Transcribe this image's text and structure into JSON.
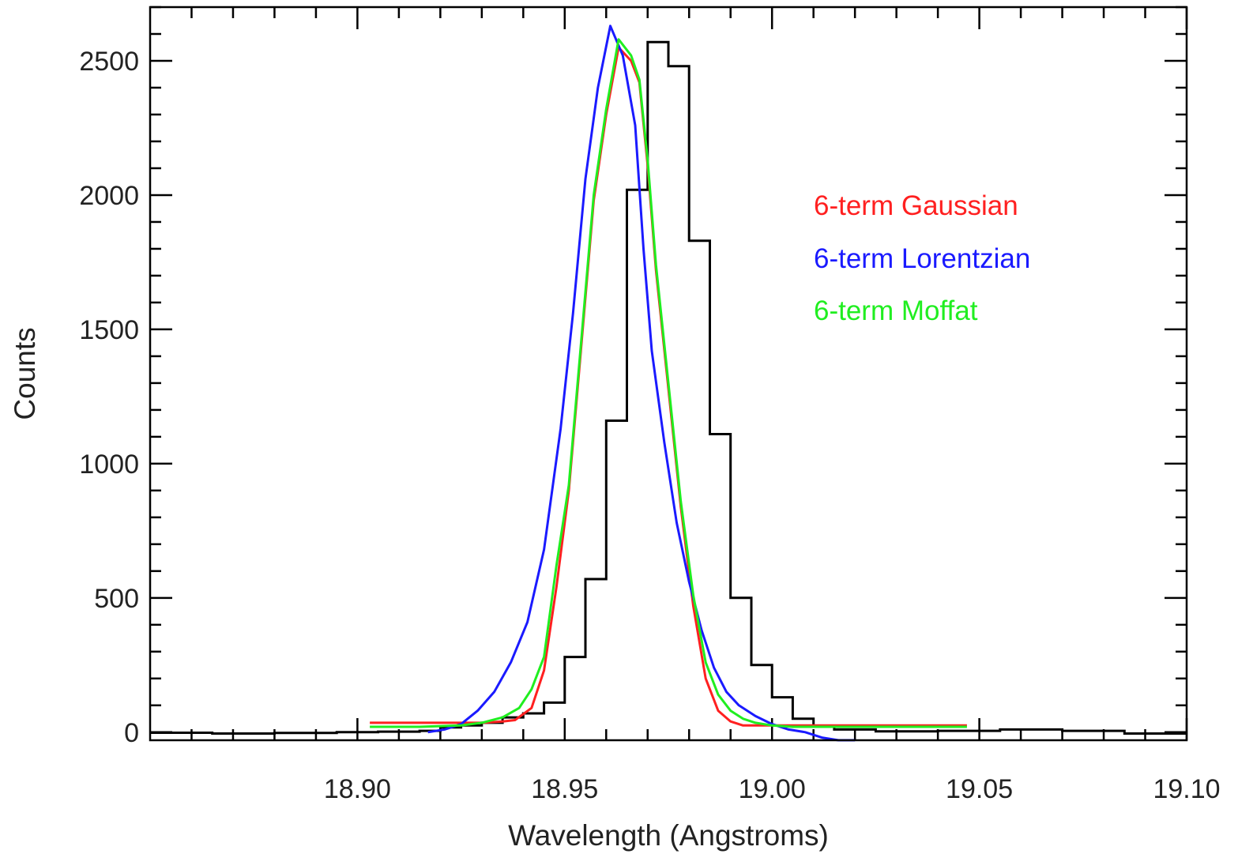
{
  "chart_data": {
    "type": "line",
    "title": "",
    "xlabel": "Wavelength (Angstroms)",
    "ylabel": "Counts",
    "xlim": [
      18.85,
      19.1
    ],
    "ylim": [
      -30,
      2700
    ],
    "x_ticks": [
      {
        "value": 18.9,
        "label": "18.90"
      },
      {
        "value": 18.95,
        "label": "18.95"
      },
      {
        "value": 19.0,
        "label": "19.00"
      },
      {
        "value": 19.05,
        "label": "19.05"
      },
      {
        "value": 19.1,
        "label": "19.10"
      }
    ],
    "y_ticks": [
      {
        "value": 0,
        "label": "0"
      },
      {
        "value": 500,
        "label": "500"
      },
      {
        "value": 1000,
        "label": "1000"
      },
      {
        "value": 1500,
        "label": "1500"
      },
      {
        "value": 2000,
        "label": "2000"
      },
      {
        "value": 2500,
        "label": "2500"
      }
    ],
    "legend_position": "top-right",
    "histogram": {
      "color": "#000000",
      "edges": [
        18.85,
        18.865,
        18.88,
        18.895,
        18.905,
        18.915,
        18.92,
        18.925,
        18.93,
        18.935,
        18.94,
        18.945,
        18.95,
        18.955,
        18.96,
        18.965,
        18.97,
        18.975,
        18.98,
        18.985,
        18.99,
        18.995,
        19.0,
        19.005,
        19.01,
        19.015,
        19.025,
        19.04,
        19.055,
        19.07,
        19.085,
        19.1
      ],
      "counts": [
        -2,
        -5,
        -3,
        0,
        2,
        5,
        18,
        25,
        35,
        55,
        70,
        110,
        280,
        570,
        1160,
        2020,
        2570,
        2480,
        1830,
        1110,
        500,
        250,
        130,
        50,
        20,
        10,
        3,
        5,
        10,
        5,
        -5
      ]
    },
    "series": [
      {
        "name": "6-term Gaussian",
        "color": "#ff2020",
        "x": [
          18.903,
          18.915,
          18.925,
          18.93,
          18.935,
          18.938,
          18.942,
          18.945,
          18.948,
          18.951,
          18.954,
          18.957,
          18.96,
          18.963,
          18.966,
          18.968,
          18.97,
          18.972,
          18.975,
          18.978,
          18.981,
          18.984,
          18.987,
          18.99,
          18.993,
          18.996,
          19.0,
          19.005,
          19.01,
          19.02,
          19.047
        ],
        "y": [
          35,
          35,
          35,
          35,
          40,
          45,
          90,
          230,
          540,
          900,
          1440,
          1980,
          2300,
          2550,
          2500,
          2420,
          2110,
          1720,
          1280,
          840,
          470,
          200,
          80,
          40,
          25,
          25,
          25,
          25,
          25,
          25,
          25
        ]
      },
      {
        "name": "6-term Lorentzian",
        "color": "#1a1aff",
        "x": [
          18.917,
          18.921,
          18.925,
          18.929,
          18.933,
          18.937,
          18.941,
          18.945,
          18.949,
          18.952,
          18.955,
          18.958,
          18.961,
          18.964,
          18.967,
          18.969,
          18.971,
          18.974,
          18.977,
          18.98,
          18.983,
          18.986,
          18.989,
          18.992,
          18.996,
          19.0,
          19.004,
          19.008,
          19.012,
          19.016,
          19.02
        ],
        "y": [
          0,
          10,
          30,
          80,
          150,
          260,
          410,
          680,
          1130,
          1560,
          2060,
          2400,
          2630,
          2520,
          2260,
          1800,
          1420,
          1080,
          780,
          560,
          380,
          240,
          150,
          100,
          60,
          30,
          10,
          0,
          -20,
          -40,
          -60
        ]
      },
      {
        "name": "6-term Moffat",
        "color": "#20ee20",
        "x": [
          18.903,
          18.915,
          18.925,
          18.93,
          18.935,
          18.939,
          18.942,
          18.945,
          18.948,
          18.951,
          18.954,
          18.957,
          18.96,
          18.963,
          18.966,
          18.968,
          18.97,
          18.972,
          18.975,
          18.978,
          18.981,
          18.984,
          18.987,
          18.99,
          18.993,
          18.996,
          19.0,
          19.005,
          19.01,
          19.02,
          19.047
        ],
        "y": [
          20,
          20,
          25,
          35,
          55,
          90,
          160,
          280,
          620,
          920,
          1460,
          2000,
          2320,
          2580,
          2520,
          2430,
          2130,
          1740,
          1300,
          860,
          510,
          260,
          140,
          80,
          50,
          35,
          25,
          20,
          20,
          20,
          20
        ]
      }
    ]
  }
}
